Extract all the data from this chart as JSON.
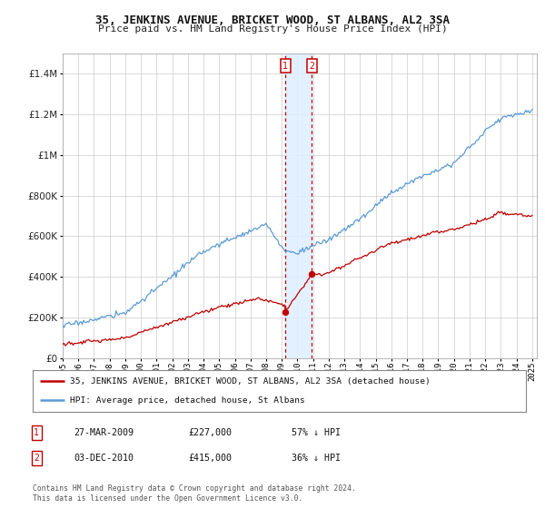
{
  "title": "35, JENKINS AVENUE, BRICKET WOOD, ST ALBANS, AL2 3SA",
  "subtitle": "Price paid vs. HM Land Registry's House Price Index (HPI)",
  "y_ticks": [
    0,
    200000,
    400000,
    600000,
    800000,
    1000000,
    1200000,
    1400000
  ],
  "y_tick_labels": [
    "£0",
    "£200K",
    "£400K",
    "£600K",
    "£800K",
    "£1M",
    "£1.2M",
    "£1.4M"
  ],
  "hpi_color": "#5b9bd5",
  "price_color": "#c00000",
  "transaction1_date": 2009.23,
  "transaction1_price": 227000,
  "transaction2_date": 2010.92,
  "transaction2_price": 415000,
  "legend_line1": "35, JENKINS AVENUE, BRICKET WOOD, ST ALBANS, AL2 3SA (detached house)",
  "legend_line2": "HPI: Average price, detached house, St Albans",
  "table_row1": [
    "1",
    "27-MAR-2009",
    "£227,000",
    "57% ↓ HPI"
  ],
  "table_row2": [
    "2",
    "03-DEC-2010",
    "£415,000",
    "36% ↓ HPI"
  ],
  "footnote": "Contains HM Land Registry data © Crown copyright and database right 2024.\nThis data is licensed under the Open Government Licence v3.0.",
  "background_color": "#ffffff",
  "grid_color": "#cccccc",
  "span_color": "#ddeeff",
  "hpi_seed": 17,
  "price_seed": 53
}
